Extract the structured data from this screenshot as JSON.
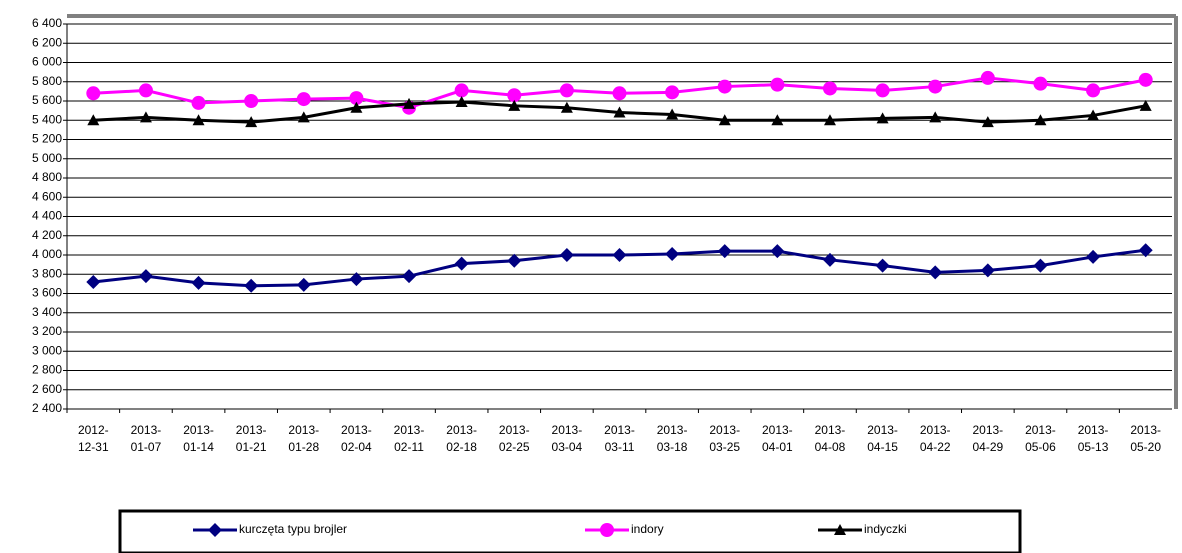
{
  "chart_data": {
    "type": "line",
    "categories": [
      "2012-12-31",
      "2013-01-07",
      "2013-01-14",
      "2013-01-21",
      "2013-01-28",
      "2013-02-04",
      "2013-02-11",
      "2013-02-18",
      "2013-02-25",
      "2013-03-04",
      "2013-03-11",
      "2013-03-18",
      "2013-03-25",
      "2013-04-01",
      "2013-04-08",
      "2013-04-15",
      "2013-04-22",
      "2013-04-29",
      "2013-05-06",
      "2013-05-13",
      "2013-05-20"
    ],
    "series": [
      {
        "name": "kurczęta typu brojler",
        "color": "#000080",
        "marker": "diamond",
        "values": [
          3720,
          3780,
          3710,
          3680,
          3690,
          3750,
          3780,
          3910,
          3940,
          4000,
          4000,
          4010,
          4040,
          4040,
          3950,
          3890,
          3820,
          3840,
          3890,
          3980,
          4050
        ]
      },
      {
        "name": "indory",
        "color": "#ff00ff",
        "marker": "circle",
        "values": [
          5680,
          5710,
          5580,
          5600,
          5620,
          5630,
          5530,
          5710,
          5660,
          5710,
          5680,
          5690,
          5750,
          5770,
          5730,
          5710,
          5750,
          5840,
          5780,
          5710,
          5820
        ]
      },
      {
        "name": "indyczki",
        "color": "#000000",
        "marker": "triangle",
        "values": [
          5400,
          5430,
          5400,
          5380,
          5430,
          5530,
          5570,
          5590,
          5550,
          5530,
          5480,
          5460,
          5400,
          5400,
          5400,
          5420,
          5430,
          5380,
          5400,
          5450,
          5550
        ]
      }
    ],
    "ylim": [
      2400,
      6400
    ],
    "yticks": [
      {
        "value": 2400,
        "label": "2 400"
      },
      {
        "value": 2600,
        "label": "2 600"
      },
      {
        "value": 2800,
        "label": "2 800"
      },
      {
        "value": 3000,
        "label": "3 000"
      },
      {
        "value": 3200,
        "label": "3 200"
      },
      {
        "value": 3400,
        "label": "3 400"
      },
      {
        "value": 3600,
        "label": "3 600"
      },
      {
        "value": 3800,
        "label": "3 800"
      },
      {
        "value": 4000,
        "label": "4 000"
      },
      {
        "value": 4200,
        "label": "4 200"
      },
      {
        "value": 4400,
        "label": "4 400"
      },
      {
        "value": 4600,
        "label": "4 600"
      },
      {
        "value": 4800,
        "label": "4 800"
      },
      {
        "value": 5000,
        "label": "5 000"
      },
      {
        "value": 5200,
        "label": "5 200"
      },
      {
        "value": 5400,
        "label": "5 400"
      },
      {
        "value": 5600,
        "label": "5 600"
      },
      {
        "value": 5800,
        "label": "5 800"
      },
      {
        "value": 6000,
        "label": "6 000"
      },
      {
        "value": 6200,
        "label": "6 200"
      },
      {
        "value": 6400,
        "label": "6 400"
      }
    ],
    "grid": true,
    "legend": "bottom"
  }
}
